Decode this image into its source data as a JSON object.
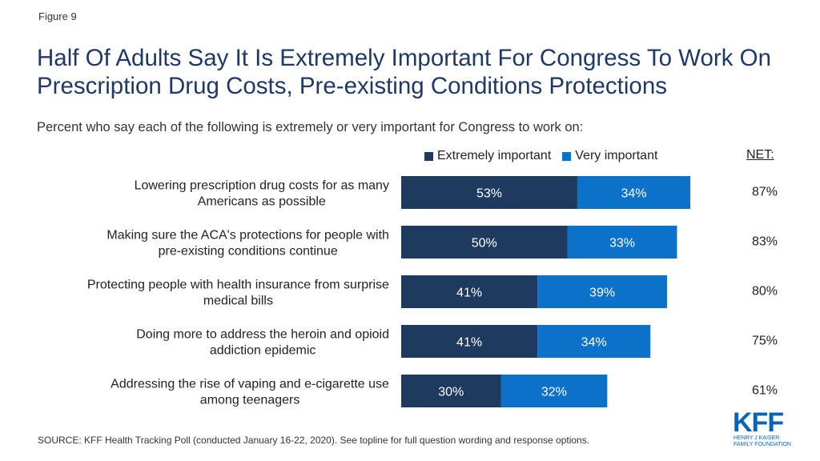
{
  "figure_label": "Figure 9",
  "subtitle": "Percent who say each of the following is extremely or very important for Congress to work on:",
  "source": "SOURCE: KFF Health Tracking Poll (conducted January 16-22, 2020). See topline for full question wording and response options.",
  "net_header": "NET:",
  "logo": {
    "text": "KFF",
    "line1": "HENRY J KAISER",
    "line2": "FAMILY FOUNDATION",
    "color": "#0a64b4"
  },
  "colors": {
    "extremely": "#1f3a5f",
    "very": "#0b72c9"
  },
  "chart_data": {
    "type": "bar",
    "orientation": "horizontal",
    "stacked": true,
    "title": "Half Of Adults Say It Is Extremely Important For Congress To Work On Prescription Drug Costs, Pre-existing Conditions Protections",
    "categories": [
      [
        "Lowering prescription drug costs for as many",
        "Americans as possible"
      ],
      [
        "Making sure the ACA's protections for people with",
        "pre-existing conditions continue"
      ],
      [
        "Protecting people with health insurance from surprise",
        "medical bills"
      ],
      [
        "Doing more to address the heroin and opioid",
        "addiction epidemic"
      ],
      [
        "Addressing the rise of vaping and e-cigarette use",
        "among teenagers"
      ]
    ],
    "series": [
      {
        "name": "Extremely important",
        "values": [
          53,
          50,
          41,
          41,
          30
        ]
      },
      {
        "name": "Very important",
        "values": [
          34,
          33,
          39,
          34,
          32
        ]
      }
    ],
    "net": [
      87,
      83,
      80,
      75,
      61
    ],
    "legend_position": "top",
    "grid": false,
    "xlim": [
      0,
      100
    ]
  }
}
